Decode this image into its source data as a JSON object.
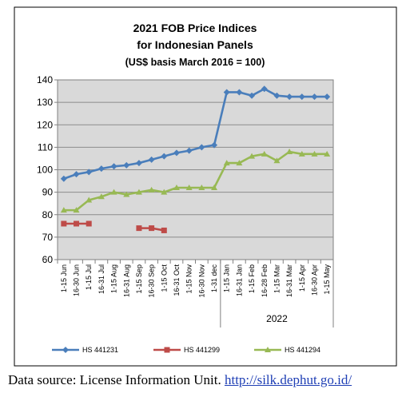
{
  "chart_data": {
    "type": "line",
    "title_lines": [
      "2021 FOB Price Indices",
      "for Indonesian Panels",
      "(US$ basis March 2016 = 100)"
    ],
    "categories": [
      "1-15 Jun",
      "16-30 Jun",
      "1-15 Jul",
      "16-31 Jul",
      "1-15 Aug",
      "16-31 Aug",
      "1-15 Sep",
      "16-30 Sep",
      "1-15 Oct",
      "16-31 Oct",
      "1-15 Nov",
      "16-30 Nov",
      "1-31 dec",
      "1-15 Jan",
      "16-31 Jan",
      "1-15 Feb",
      "16-28 Feb",
      "1-15 Mar",
      "16-31 Mar",
      "1-15 Apr",
      "16-30 Apr",
      "1-15 May"
    ],
    "year_label": "2022",
    "year_group_start_index": 13,
    "ylim": [
      60,
      140
    ],
    "yticks": [
      60,
      70,
      80,
      90,
      100,
      110,
      120,
      130,
      140
    ],
    "grid": true,
    "legend_position": "bottom",
    "series": [
      {
        "name": "HS 441231",
        "color": "#4a7ebb",
        "values": [
          96,
          98,
          99,
          100.5,
          101.5,
          102,
          103,
          104.5,
          106,
          107.5,
          108.5,
          110,
          111,
          134.5,
          134.5,
          133,
          136,
          133,
          132.5,
          132.5,
          132.5,
          132.5
        ]
      },
      {
        "name": "HS 441299",
        "color": "#be4b48",
        "values": [
          76,
          76,
          76,
          null,
          null,
          null,
          74,
          74,
          73,
          null,
          null,
          null,
          null,
          null,
          null,
          null,
          null,
          null,
          null,
          null,
          null,
          null
        ]
      },
      {
        "name": "HS 441294",
        "color": "#98b954",
        "values": [
          82,
          82,
          86.5,
          88,
          90,
          89,
          90,
          91,
          90,
          92,
          92,
          92,
          92,
          103,
          103,
          106,
          107,
          104,
          108,
          107,
          107,
          107
        ]
      }
    ]
  },
  "caption": {
    "text": "Data source: License Information Unit. ",
    "link": "http://silk.dephut.go.id/"
  }
}
